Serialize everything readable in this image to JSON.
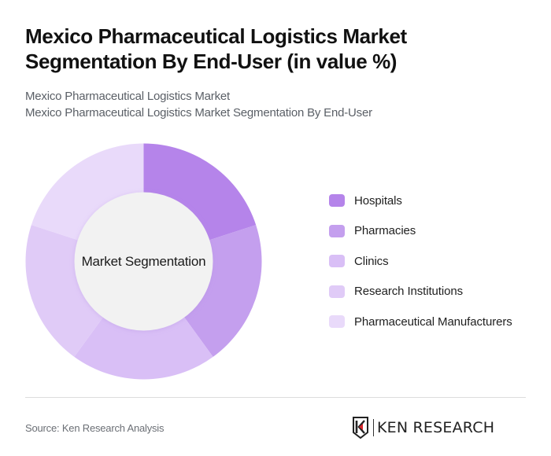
{
  "header": {
    "title": "Mexico Pharmaceutical Logistics Market Segmentation By End-User (in value %)",
    "subtitle_line1": "Mexico Pharmaceutical Logistics Market",
    "subtitle_line2": "Mexico Pharmaceutical Logistics Market Segmentation By End-User"
  },
  "chart": {
    "center_label": "Market Segmentation"
  },
  "legend": {
    "items": [
      {
        "label": "Hospitals",
        "color": "#b584ea"
      },
      {
        "label": "Pharmacies",
        "color": "#c49fee"
      },
      {
        "label": "Clinics",
        "color": "#d9bff6"
      },
      {
        "label": "Research Institutions",
        "color": "#e0cbf7"
      },
      {
        "label": "Pharmaceutical Manufacturers",
        "color": "#e9dafa"
      }
    ]
  },
  "footer": {
    "source": "Source: Ken Research Analysis",
    "logo_text": "KEN RESEARCH"
  },
  "chart_data": {
    "type": "pie",
    "variant": "donut",
    "title": "Mexico Pharmaceutical Logistics Market Segmentation By End-User (in value %)",
    "subtitle": "Mexico Pharmaceutical Logistics Market Segmentation By End-User",
    "center_label": "Market Segmentation",
    "categories": [
      "Hospitals",
      "Pharmacies",
      "Clinics",
      "Research Institutions",
      "Pharmaceutical Manufacturers"
    ],
    "values": [
      20,
      20,
      20,
      20,
      20
    ],
    "colors": [
      "#b584ea",
      "#c49fee",
      "#d9bff6",
      "#e0cbf7",
      "#e9dafa"
    ],
    "start_angle": "12 o'clock, clockwise",
    "legend_position": "right",
    "data_labels": false
  }
}
